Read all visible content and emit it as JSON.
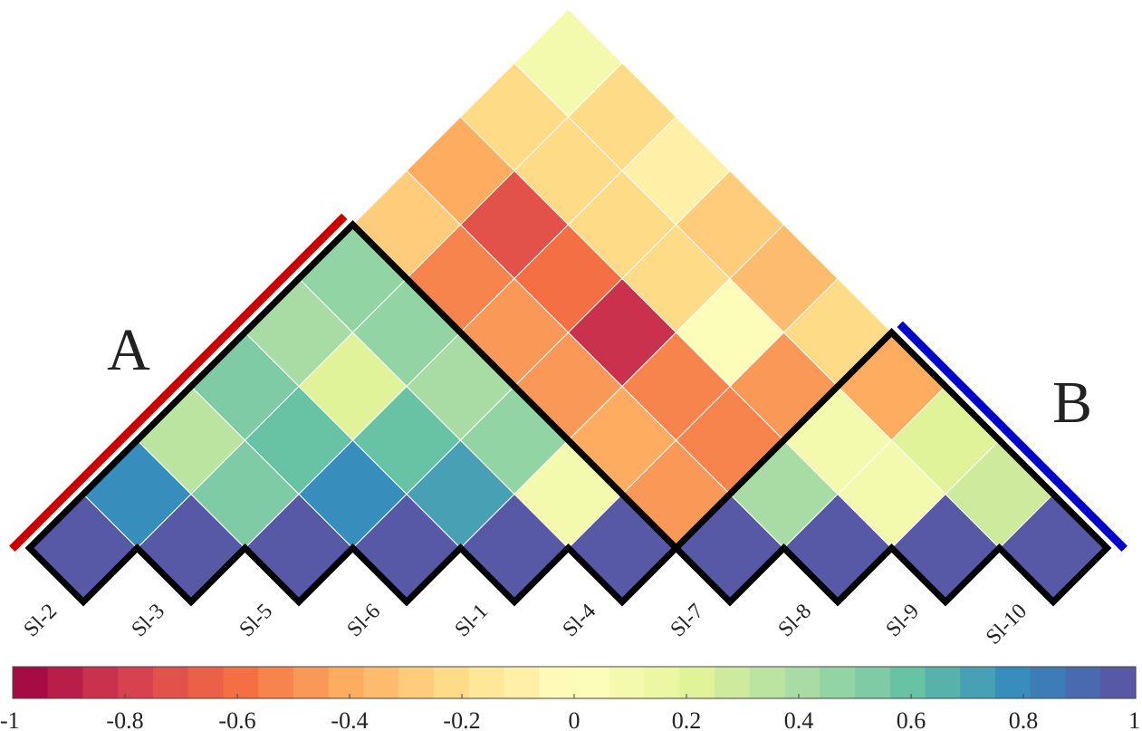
{
  "chart_data": {
    "type": "heatmap",
    "layout": "triangular correlation matrix rotated 45 degrees",
    "samples": [
      "Sl-2",
      "Sl-3",
      "Sl-5",
      "Sl-6",
      "Sl-1",
      "Sl-4",
      "Sl-7",
      "Sl-8",
      "Sl-9",
      "Sl-10"
    ],
    "matrix": [
      [
        1,
        0.8,
        0.35,
        0.5,
        0.4,
        0.45,
        -0.3,
        -0.4,
        -0.25,
        0.1
      ],
      [
        0.8,
        1,
        0.55,
        0.6,
        0.2,
        0.45,
        -0.55,
        -0.75,
        -0.25,
        -0.2
      ],
      [
        0.35,
        0.55,
        1,
        0.8,
        0.6,
        0.4,
        -0.45,
        -0.6,
        -0.2,
        -0.1
      ],
      [
        0.5,
        0.6,
        0.8,
        1,
        0.7,
        0.45,
        -0.45,
        -0.85,
        -0.25,
        -0.3
      ],
      [
        0.4,
        0.2,
        0.6,
        0.7,
        1,
        0.1,
        -0.4,
        -0.55,
        0.05,
        -0.35
      ],
      [
        0.45,
        0.45,
        0.4,
        0.45,
        0.1,
        1,
        -0.45,
        -0.55,
        -0.45,
        -0.25
      ],
      [
        -0.3,
        -0.55,
        -0.45,
        -0.45,
        -0.4,
        -0.45,
        1,
        0.4,
        0.1,
        -0.4
      ],
      [
        -0.4,
        -0.75,
        -0.6,
        -0.85,
        -0.55,
        -0.55,
        0.4,
        1,
        0.1,
        0.2
      ],
      [
        -0.25,
        -0.25,
        -0.2,
        -0.25,
        0.05,
        -0.45,
        0.1,
        0.1,
        1,
        0.25
      ],
      [
        0.1,
        -0.2,
        -0.1,
        -0.3,
        -0.35,
        -0.25,
        -0.4,
        0.2,
        0.25,
        1
      ]
    ],
    "clusters": [
      {
        "label": "A",
        "start": 0,
        "end": 5,
        "color": "#cc0000"
      },
      {
        "label": "B",
        "start": 6,
        "end": 9,
        "color": "#0000cc"
      }
    ],
    "colorbar": {
      "range": [
        -1,
        1
      ],
      "steps": 32,
      "ticks": [
        -1,
        -0.8,
        -0.6,
        -0.4,
        -0.2,
        0,
        0.2,
        0.4,
        0.6,
        0.8,
        1
      ],
      "tick_labels": [
        "-1",
        "-0.8",
        "-0.6",
        "-0.4",
        "-0.2",
        "0",
        "0.2",
        "0.4",
        "0.6",
        "0.8",
        "1"
      ],
      "colormap_stops": [
        "#9e0142",
        "#d53e4f",
        "#f46d43",
        "#fdae61",
        "#fee08b",
        "#ffffbf",
        "#e6f598",
        "#abdda4",
        "#66c2a5",
        "#3288bd",
        "#5e4fa2"
      ]
    }
  }
}
